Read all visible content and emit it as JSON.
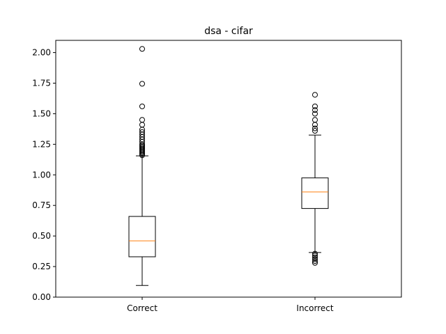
{
  "chart_data": {
    "type": "boxplot",
    "title": "dsa - cifar",
    "xlabel": "",
    "ylabel": "",
    "ylim": [
      0.0,
      2.1
    ],
    "yticks": [
      0.0,
      0.25,
      0.5,
      0.75,
      1.0,
      1.25,
      1.5,
      1.75,
      2.0
    ],
    "ytick_labels": [
      "0.00",
      "0.25",
      "0.50",
      "0.75",
      "1.00",
      "1.25",
      "1.50",
      "1.75",
      "2.00"
    ],
    "grid": false,
    "colors": {
      "box": "#000000",
      "median": "#ff7f0e"
    },
    "categories": [
      "Correct",
      "Incorrect"
    ],
    "boxes": [
      {
        "label": "Correct",
        "whisker_low": 0.095,
        "q1": 0.33,
        "median": 0.46,
        "q3": 0.66,
        "whisker_high": 1.155,
        "outliers": [
          1.16,
          1.17,
          1.18,
          1.19,
          1.2,
          1.21,
          1.22,
          1.23,
          1.24,
          1.25,
          1.27,
          1.29,
          1.31,
          1.33,
          1.35,
          1.37,
          1.41,
          1.45,
          1.56,
          1.745,
          2.03
        ]
      },
      {
        "label": "Incorrect",
        "whisker_low": 0.365,
        "q1": 0.725,
        "median": 0.86,
        "q3": 0.975,
        "whisker_high": 1.325,
        "outliers": [
          0.28,
          0.295,
          0.31,
          0.325,
          0.34,
          0.355,
          1.36,
          1.38,
          1.41,
          1.45,
          1.5,
          1.53,
          1.56,
          1.655
        ]
      }
    ]
  }
}
